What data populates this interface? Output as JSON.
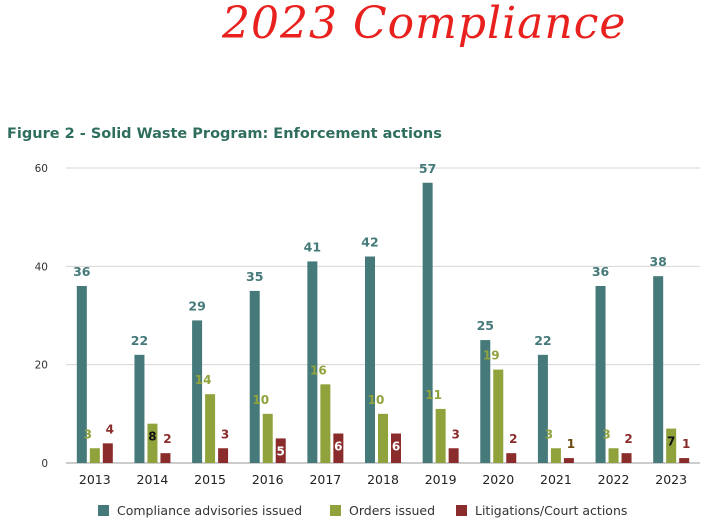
{
  "annotation_text": "2023 Compliance",
  "chart_data": {
    "type": "bar",
    "title": "Figure 2 - Solid Waste Program: Enforcement actions",
    "categories": [
      "2013",
      "2014",
      "2015",
      "2016",
      "2017",
      "2018",
      "2019",
      "2020",
      "2021",
      "2022",
      "2023"
    ],
    "series": [
      {
        "name": "Compliance advisories issued",
        "color": "#467a7a",
        "values": [
          36,
          22,
          29,
          35,
          41,
          42,
          57,
          25,
          22,
          36,
          38
        ]
      },
      {
        "name": "Orders issued",
        "color": "#8fa23c",
        "values": [
          3,
          8,
          14,
          10,
          16,
          10,
          11,
          19,
          3,
          3,
          7
        ]
      },
      {
        "name": "Litigations/Court actions",
        "color": "#8b2c2c",
        "values": [
          4,
          2,
          3,
          5,
          6,
          6,
          3,
          2,
          1,
          2,
          1
        ]
      }
    ],
    "ylim": [
      0,
      60
    ],
    "yticks": [
      0,
      20,
      40,
      60
    ],
    "grid": true,
    "legend": "bottom",
    "xlabel": "",
    "ylabel": ""
  }
}
